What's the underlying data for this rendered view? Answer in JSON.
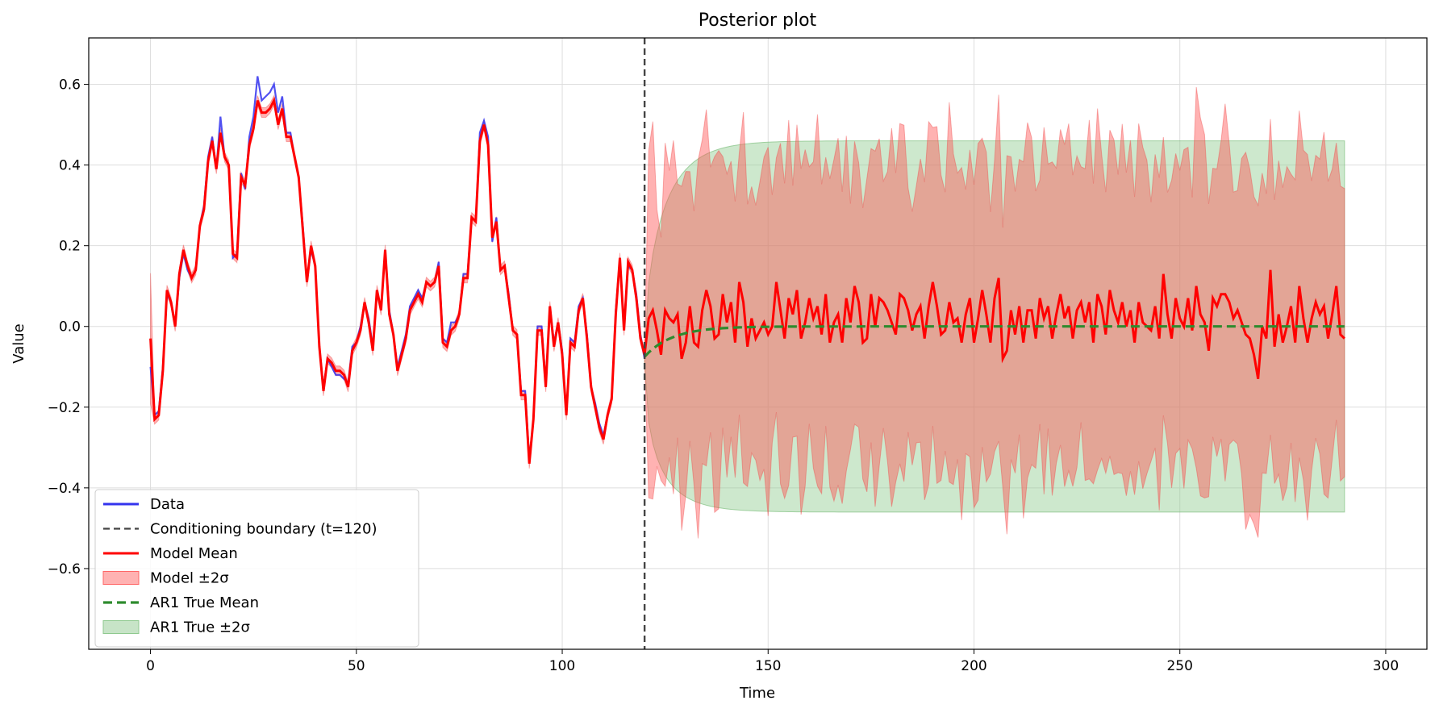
{
  "chart_data": {
    "type": "line",
    "title": "Posterior plot",
    "xlabel": "Time",
    "ylabel": "Value",
    "xlim": [
      -15,
      310
    ],
    "ylim": [
      -0.8,
      0.715
    ],
    "x_ticks": [
      0,
      50,
      100,
      150,
      200,
      250,
      300
    ],
    "y_ticks": [
      -0.6,
      -0.4,
      -0.2,
      0.0,
      0.2,
      0.4,
      0.6
    ],
    "x_tick_labels": [
      "0",
      "50",
      "100",
      "150",
      "200",
      "250",
      "300"
    ],
    "y_tick_labels": [
      "−0.6",
      "−0.4",
      "−0.2",
      "0.0",
      "0.2",
      "0.4",
      "0.6"
    ],
    "grid": true,
    "legend_position": "lower-left",
    "conditioning_boundary": 120,
    "ar1_band_halfwidth": 0.46,
    "ar1_start_mean": -0.075,
    "ar1_decay_rate": 0.15,
    "data_series": [
      [
        0,
        -0.1
      ],
      [
        1,
        -0.22
      ],
      [
        2,
        -0.21
      ],
      [
        3,
        -0.1
      ],
      [
        4,
        0.08
      ],
      [
        5,
        0.06
      ],
      [
        6,
        0.0
      ],
      [
        7,
        0.12
      ],
      [
        8,
        0.18
      ],
      [
        9,
        0.14
      ],
      [
        10,
        0.12
      ],
      [
        11,
        0.14
      ],
      [
        12,
        0.25
      ],
      [
        13,
        0.3
      ],
      [
        14,
        0.42
      ],
      [
        15,
        0.47
      ],
      [
        16,
        0.39
      ],
      [
        17,
        0.52
      ],
      [
        18,
        0.42
      ],
      [
        19,
        0.4
      ],
      [
        20,
        0.17
      ],
      [
        21,
        0.18
      ],
      [
        22,
        0.38
      ],
      [
        23,
        0.34
      ],
      [
        24,
        0.47
      ],
      [
        25,
        0.52
      ],
      [
        26,
        0.62
      ],
      [
        27,
        0.56
      ],
      [
        28,
        0.57
      ],
      [
        29,
        0.58
      ],
      [
        30,
        0.6
      ],
      [
        31,
        0.53
      ],
      [
        32,
        0.57
      ],
      [
        33,
        0.48
      ],
      [
        34,
        0.48
      ],
      [
        35,
        0.42
      ],
      [
        36,
        0.37
      ],
      [
        37,
        0.25
      ],
      [
        38,
        0.11
      ],
      [
        39,
        0.19
      ],
      [
        40,
        0.15
      ],
      [
        41,
        -0.05
      ],
      [
        42,
        -0.15
      ],
      [
        43,
        -0.08
      ],
      [
        44,
        -0.1
      ],
      [
        45,
        -0.12
      ],
      [
        46,
        -0.12
      ],
      [
        47,
        -0.13
      ],
      [
        48,
        -0.14
      ],
      [
        49,
        -0.05
      ],
      [
        50,
        -0.04
      ],
      [
        51,
        0.0
      ],
      [
        52,
        0.06
      ],
      [
        53,
        0.02
      ],
      [
        54,
        -0.05
      ],
      [
        55,
        0.09
      ],
      [
        56,
        0.04
      ],
      [
        57,
        0.19
      ],
      [
        58,
        0.04
      ],
      [
        59,
        -0.02
      ],
      [
        60,
        -0.1
      ],
      [
        61,
        -0.06
      ],
      [
        62,
        -0.02
      ],
      [
        63,
        0.05
      ],
      [
        64,
        0.07
      ],
      [
        65,
        0.09
      ],
      [
        66,
        0.07
      ],
      [
        67,
        0.11
      ],
      [
        68,
        0.1
      ],
      [
        69,
        0.11
      ],
      [
        70,
        0.16
      ],
      [
        71,
        -0.03
      ],
      [
        72,
        -0.04
      ],
      [
        73,
        0.01
      ],
      [
        74,
        0.01
      ],
      [
        75,
        0.03
      ],
      [
        76,
        0.13
      ],
      [
        77,
        0.13
      ],
      [
        78,
        0.27
      ],
      [
        79,
        0.26
      ],
      [
        80,
        0.48
      ],
      [
        81,
        0.51
      ],
      [
        82,
        0.47
      ],
      [
        83,
        0.21
      ],
      [
        84,
        0.27
      ],
      [
        85,
        0.14
      ],
      [
        86,
        0.15
      ],
      [
        87,
        0.08
      ],
      [
        88,
        -0.01
      ],
      [
        89,
        -0.02
      ],
      [
        90,
        -0.16
      ],
      [
        91,
        -0.16
      ],
      [
        92,
        -0.33
      ],
      [
        93,
        -0.23
      ],
      [
        94,
        0.0
      ],
      [
        95,
        0.0
      ],
      [
        96,
        -0.14
      ],
      [
        97,
        0.05
      ],
      [
        98,
        -0.04
      ],
      [
        99,
        0.01
      ],
      [
        100,
        -0.06
      ],
      [
        101,
        -0.22
      ],
      [
        102,
        -0.03
      ],
      [
        103,
        -0.04
      ],
      [
        104,
        0.05
      ],
      [
        105,
        0.07
      ],
      [
        106,
        -0.02
      ],
      [
        107,
        -0.15
      ],
      [
        108,
        -0.19
      ],
      [
        109,
        -0.24
      ],
      [
        110,
        -0.27
      ],
      [
        111,
        -0.22
      ],
      [
        112,
        -0.18
      ],
      [
        113,
        0.04
      ],
      [
        114,
        0.17
      ],
      [
        115,
        0.0
      ],
      [
        116,
        0.15
      ],
      [
        117,
        0.14
      ],
      [
        118,
        0.08
      ],
      [
        119,
        -0.02
      ],
      [
        120,
        -0.08
      ]
    ],
    "model_mean": [
      [
        0,
        -0.03
      ],
      [
        1,
        -0.23
      ],
      [
        2,
        -0.22
      ],
      [
        3,
        -0.11
      ],
      [
        4,
        0.09
      ],
      [
        5,
        0.06
      ],
      [
        6,
        0.0
      ],
      [
        7,
        0.13
      ],
      [
        8,
        0.19
      ],
      [
        9,
        0.15
      ],
      [
        10,
        0.12
      ],
      [
        11,
        0.14
      ],
      [
        12,
        0.25
      ],
      [
        13,
        0.29
      ],
      [
        14,
        0.41
      ],
      [
        15,
        0.46
      ],
      [
        16,
        0.39
      ],
      [
        17,
        0.48
      ],
      [
        18,
        0.42
      ],
      [
        19,
        0.4
      ],
      [
        20,
        0.18
      ],
      [
        21,
        0.17
      ],
      [
        22,
        0.37
      ],
      [
        23,
        0.35
      ],
      [
        24,
        0.45
      ],
      [
        25,
        0.49
      ],
      [
        26,
        0.56
      ],
      [
        27,
        0.53
      ],
      [
        28,
        0.53
      ],
      [
        29,
        0.54
      ],
      [
        30,
        0.56
      ],
      [
        31,
        0.5
      ],
      [
        32,
        0.54
      ],
      [
        33,
        0.47
      ],
      [
        34,
        0.47
      ],
      [
        35,
        0.42
      ],
      [
        36,
        0.37
      ],
      [
        37,
        0.24
      ],
      [
        38,
        0.11
      ],
      [
        39,
        0.2
      ],
      [
        40,
        0.15
      ],
      [
        41,
        -0.05
      ],
      [
        42,
        -0.16
      ],
      [
        43,
        -0.08
      ],
      [
        44,
        -0.09
      ],
      [
        45,
        -0.11
      ],
      [
        46,
        -0.11
      ],
      [
        47,
        -0.12
      ],
      [
        48,
        -0.15
      ],
      [
        49,
        -0.06
      ],
      [
        50,
        -0.04
      ],
      [
        51,
        -0.01
      ],
      [
        52,
        0.06
      ],
      [
        53,
        0.01
      ],
      [
        54,
        -0.06
      ],
      [
        55,
        0.09
      ],
      [
        56,
        0.04
      ],
      [
        57,
        0.19
      ],
      [
        58,
        0.03
      ],
      [
        59,
        -0.02
      ],
      [
        60,
        -0.11
      ],
      [
        61,
        -0.07
      ],
      [
        62,
        -0.03
      ],
      [
        63,
        0.04
      ],
      [
        64,
        0.06
      ],
      [
        65,
        0.08
      ],
      [
        66,
        0.06
      ],
      [
        67,
        0.11
      ],
      [
        68,
        0.1
      ],
      [
        69,
        0.11
      ],
      [
        70,
        0.15
      ],
      [
        71,
        -0.04
      ],
      [
        72,
        -0.05
      ],
      [
        73,
        -0.01
      ],
      [
        74,
        0.0
      ],
      [
        75,
        0.03
      ],
      [
        76,
        0.12
      ],
      [
        77,
        0.12
      ],
      [
        78,
        0.27
      ],
      [
        79,
        0.26
      ],
      [
        80,
        0.46
      ],
      [
        81,
        0.5
      ],
      [
        82,
        0.45
      ],
      [
        83,
        0.22
      ],
      [
        84,
        0.26
      ],
      [
        85,
        0.14
      ],
      [
        86,
        0.15
      ],
      [
        87,
        0.07
      ],
      [
        88,
        -0.01
      ],
      [
        89,
        -0.02
      ],
      [
        90,
        -0.17
      ],
      [
        91,
        -0.17
      ],
      [
        92,
        -0.34
      ],
      [
        93,
        -0.23
      ],
      [
        94,
        -0.01
      ],
      [
        95,
        -0.01
      ],
      [
        96,
        -0.15
      ],
      [
        97,
        0.05
      ],
      [
        98,
        -0.05
      ],
      [
        99,
        0.01
      ],
      [
        100,
        -0.07
      ],
      [
        101,
        -0.22
      ],
      [
        102,
        -0.04
      ],
      [
        103,
        -0.05
      ],
      [
        104,
        0.04
      ],
      [
        105,
        0.07
      ],
      [
        106,
        -0.03
      ],
      [
        107,
        -0.15
      ],
      [
        108,
        -0.2
      ],
      [
        109,
        -0.25
      ],
      [
        110,
        -0.28
      ],
      [
        111,
        -0.22
      ],
      [
        112,
        -0.18
      ],
      [
        113,
        0.03
      ],
      [
        114,
        0.17
      ],
      [
        115,
        -0.01
      ],
      [
        116,
        0.16
      ],
      [
        117,
        0.14
      ],
      [
        118,
        0.07
      ],
      [
        119,
        -0.03
      ],
      [
        120,
        -0.07
      ],
      [
        121,
        0.02
      ],
      [
        122,
        0.04
      ],
      [
        123,
        -0.01
      ],
      [
        124,
        -0.07
      ],
      [
        125,
        0.04
      ],
      [
        126,
        0.02
      ],
      [
        127,
        0.01
      ],
      [
        128,
        0.03
      ],
      [
        129,
        -0.08
      ],
      [
        130,
        -0.04
      ],
      [
        131,
        0.05
      ],
      [
        132,
        -0.04
      ],
      [
        133,
        -0.05
      ],
      [
        134,
        0.04
      ],
      [
        135,
        0.09
      ],
      [
        136,
        0.05
      ],
      [
        137,
        -0.03
      ],
      [
        138,
        -0.02
      ],
      [
        139,
        0.08
      ],
      [
        140,
        0.01
      ],
      [
        141,
        0.06
      ],
      [
        142,
        -0.04
      ],
      [
        143,
        0.11
      ],
      [
        144,
        0.06
      ],
      [
        145,
        -0.05
      ],
      [
        146,
        0.02
      ],
      [
        147,
        -0.03
      ],
      [
        148,
        -0.01
      ],
      [
        149,
        0.01
      ],
      [
        150,
        -0.02
      ],
      [
        151,
        0.0
      ],
      [
        152,
        0.11
      ],
      [
        153,
        0.04
      ],
      [
        154,
        -0.03
      ],
      [
        155,
        0.07
      ],
      [
        156,
        0.03
      ],
      [
        157,
        0.09
      ],
      [
        158,
        -0.03
      ],
      [
        159,
        0.01
      ],
      [
        160,
        0.07
      ],
      [
        161,
        0.02
      ],
      [
        162,
        0.05
      ],
      [
        163,
        -0.02
      ],
      [
        164,
        0.08
      ],
      [
        165,
        -0.04
      ],
      [
        166,
        0.01
      ],
      [
        167,
        0.03
      ],
      [
        168,
        -0.04
      ],
      [
        169,
        0.07
      ],
      [
        170,
        0.01
      ],
      [
        171,
        0.1
      ],
      [
        172,
        0.06
      ],
      [
        173,
        -0.04
      ],
      [
        174,
        -0.03
      ],
      [
        175,
        0.08
      ],
      [
        176,
        0.0
      ],
      [
        177,
        0.07
      ],
      [
        178,
        0.06
      ],
      [
        179,
        0.04
      ],
      [
        180,
        0.01
      ],
      [
        181,
        -0.02
      ],
      [
        182,
        0.08
      ],
      [
        183,
        0.07
      ],
      [
        184,
        0.04
      ],
      [
        185,
        -0.01
      ],
      [
        186,
        0.03
      ],
      [
        187,
        0.05
      ],
      [
        188,
        -0.03
      ],
      [
        189,
        0.05
      ],
      [
        190,
        0.11
      ],
      [
        191,
        0.05
      ],
      [
        192,
        -0.02
      ],
      [
        193,
        -0.01
      ],
      [
        194,
        0.06
      ],
      [
        195,
        0.01
      ],
      [
        196,
        0.02
      ],
      [
        197,
        -0.04
      ],
      [
        198,
        0.03
      ],
      [
        199,
        0.07
      ],
      [
        200,
        -0.04
      ],
      [
        201,
        0.02
      ],
      [
        202,
        0.09
      ],
      [
        203,
        0.03
      ],
      [
        204,
        -0.04
      ],
      [
        205,
        0.07
      ],
      [
        206,
        0.12
      ],
      [
        207,
        -0.08
      ],
      [
        208,
        -0.06
      ],
      [
        209,
        0.04
      ],
      [
        210,
        -0.02
      ],
      [
        211,
        0.05
      ],
      [
        212,
        -0.04
      ],
      [
        213,
        0.04
      ],
      [
        214,
        0.04
      ],
      [
        215,
        -0.03
      ],
      [
        216,
        0.07
      ],
      [
        217,
        0.02
      ],
      [
        218,
        0.05
      ],
      [
        219,
        -0.03
      ],
      [
        220,
        0.03
      ],
      [
        221,
        0.08
      ],
      [
        222,
        0.02
      ],
      [
        223,
        0.05
      ],
      [
        224,
        -0.03
      ],
      [
        225,
        0.04
      ],
      [
        226,
        0.06
      ],
      [
        227,
        0.01
      ],
      [
        228,
        0.06
      ],
      [
        229,
        -0.04
      ],
      [
        230,
        0.08
      ],
      [
        231,
        0.05
      ],
      [
        232,
        -0.02
      ],
      [
        233,
        0.09
      ],
      [
        234,
        0.04
      ],
      [
        235,
        0.01
      ],
      [
        236,
        0.06
      ],
      [
        237,
        0.0
      ],
      [
        238,
        0.04
      ],
      [
        239,
        -0.04
      ],
      [
        240,
        0.06
      ],
      [
        241,
        0.01
      ],
      [
        242,
        0.0
      ],
      [
        243,
        -0.01
      ],
      [
        244,
        0.05
      ],
      [
        245,
        -0.03
      ],
      [
        246,
        0.13
      ],
      [
        247,
        0.03
      ],
      [
        248,
        -0.03
      ],
      [
        249,
        0.07
      ],
      [
        250,
        0.02
      ],
      [
        251,
        0.0
      ],
      [
        252,
        0.07
      ],
      [
        253,
        -0.01
      ],
      [
        254,
        0.1
      ],
      [
        255,
        0.03
      ],
      [
        256,
        0.01
      ],
      [
        257,
        -0.06
      ],
      [
        258,
        0.07
      ],
      [
        259,
        0.05
      ],
      [
        260,
        0.08
      ],
      [
        261,
        0.08
      ],
      [
        262,
        0.06
      ],
      [
        263,
        0.02
      ],
      [
        264,
        0.04
      ],
      [
        265,
        0.01
      ],
      [
        266,
        -0.02
      ],
      [
        267,
        -0.03
      ],
      [
        268,
        -0.07
      ],
      [
        269,
        -0.13
      ],
      [
        270,
        0.0
      ],
      [
        271,
        -0.03
      ],
      [
        272,
        0.14
      ],
      [
        273,
        -0.05
      ],
      [
        274,
        0.03
      ],
      [
        275,
        -0.04
      ],
      [
        276,
        0.0
      ],
      [
        277,
        0.05
      ],
      [
        278,
        -0.04
      ],
      [
        279,
        0.1
      ],
      [
        280,
        0.02
      ],
      [
        281,
        -0.04
      ],
      [
        282,
        0.02
      ],
      [
        283,
        0.06
      ],
      [
        284,
        0.03
      ],
      [
        285,
        0.05
      ],
      [
        286,
        -0.03
      ],
      [
        287,
        0.03
      ],
      [
        288,
        0.1
      ],
      [
        289,
        -0.02
      ],
      [
        290,
        -0.03
      ]
    ],
    "legend": [
      {
        "label": "Data",
        "kind": "line",
        "color": "#3333ee"
      },
      {
        "label": "Conditioning boundary (t=120)",
        "kind": "dashed",
        "color": "#444444"
      },
      {
        "label": "Model Mean",
        "kind": "line",
        "color": "#ff0000"
      },
      {
        "label": "Model ±2σ",
        "kind": "patch",
        "color": "#ff6666"
      },
      {
        "label": "AR1 True Mean",
        "kind": "dashed-thick",
        "color": "#2e8b2e"
      },
      {
        "label": "AR1 True ±2σ",
        "kind": "patch",
        "color": "#8fc98f"
      }
    ],
    "colors": {
      "data": "#3333ee",
      "model_mean": "#ff0000",
      "model_band": "#ff5555",
      "ar1_mean": "#2e8b2e",
      "ar1_band": "#90cc90",
      "boundary": "#444444",
      "grid": "#dddddd"
    }
  }
}
